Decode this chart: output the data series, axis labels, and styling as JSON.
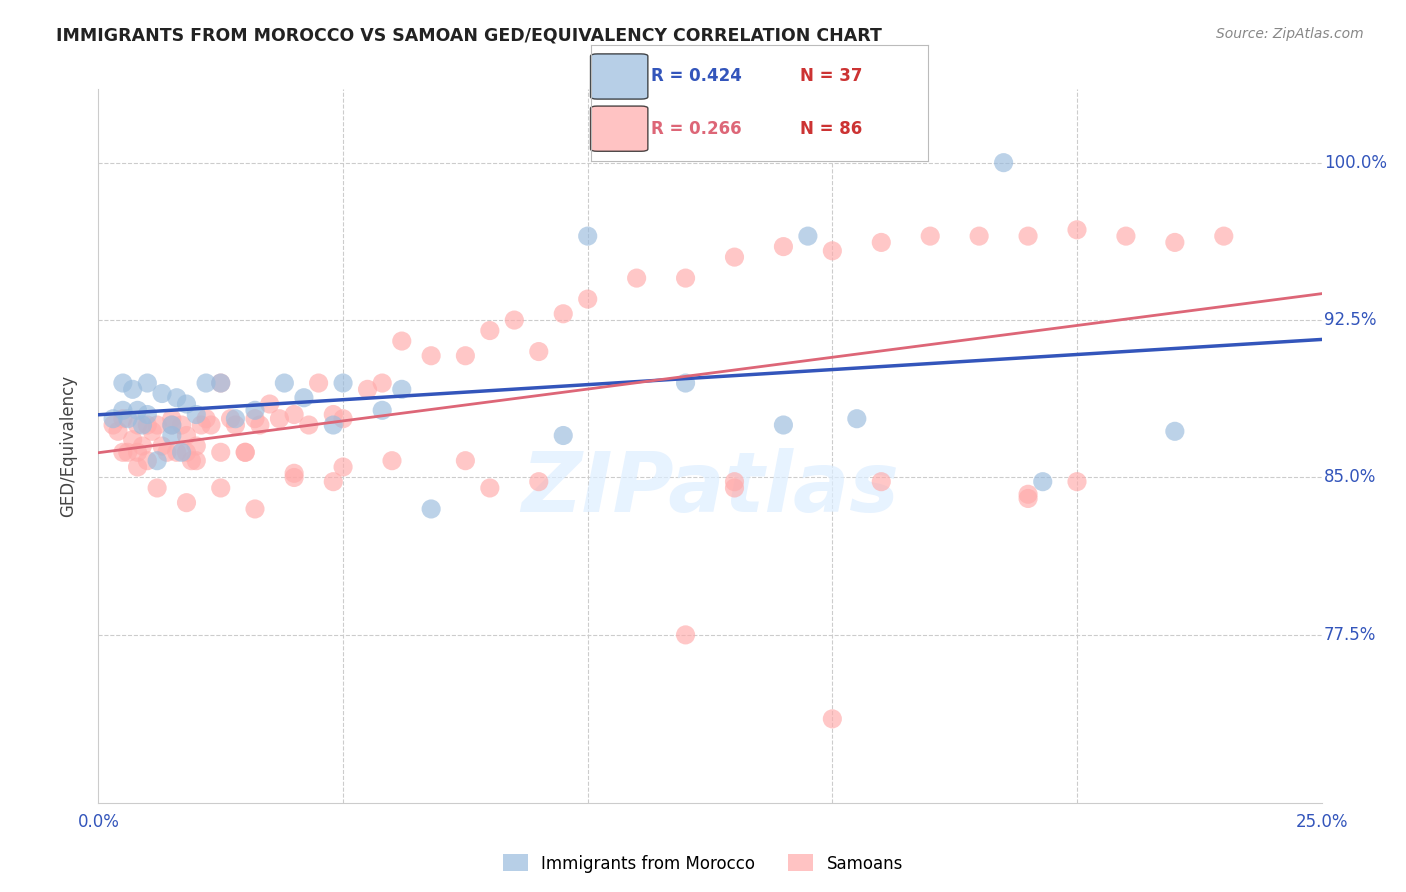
{
  "title": "IMMIGRANTS FROM MOROCCO VS SAMOAN GED/EQUIVALENCY CORRELATION CHART",
  "source": "Source: ZipAtlas.com",
  "ylabel": "GED/Equivalency",
  "ytick_labels": [
    "100.0%",
    "92.5%",
    "85.0%",
    "77.5%"
  ],
  "ytick_values": [
    1.0,
    0.925,
    0.85,
    0.775
  ],
  "xlim": [
    0.0,
    0.25
  ],
  "ylim": [
    0.695,
    1.035
  ],
  "r_blue": "0.424",
  "n_blue": "37",
  "r_pink": "0.266",
  "n_pink": "86",
  "blue_fill": "#99BBDD",
  "pink_fill": "#FFAAAA",
  "line_blue": "#3355BB",
  "line_pink": "#DD6677",
  "legend_label_blue": "Immigrants from Morocco",
  "legend_label_pink": "Samoans",
  "blue_x": [
    0.003,
    0.005,
    0.005,
    0.006,
    0.007,
    0.008,
    0.009,
    0.01,
    0.01,
    0.012,
    0.013,
    0.015,
    0.015,
    0.016,
    0.017,
    0.018,
    0.02,
    0.022,
    0.025,
    0.028,
    0.032,
    0.038,
    0.042,
    0.048,
    0.05,
    0.058,
    0.062,
    0.068,
    0.095,
    0.1,
    0.12,
    0.14,
    0.155,
    0.185,
    0.145,
    0.193,
    0.22
  ],
  "blue_y": [
    0.878,
    0.882,
    0.895,
    0.878,
    0.892,
    0.882,
    0.875,
    0.88,
    0.895,
    0.858,
    0.89,
    0.875,
    0.87,
    0.888,
    0.862,
    0.885,
    0.88,
    0.895,
    0.895,
    0.878,
    0.882,
    0.895,
    0.888,
    0.875,
    0.895,
    0.882,
    0.892,
    0.835,
    0.87,
    0.965,
    0.895,
    0.875,
    0.878,
    1.0,
    0.965,
    0.848,
    0.872
  ],
  "pink_x": [
    0.003,
    0.004,
    0.005,
    0.006,
    0.007,
    0.008,
    0.008,
    0.009,
    0.01,
    0.01,
    0.011,
    0.012,
    0.013,
    0.014,
    0.015,
    0.016,
    0.017,
    0.018,
    0.018,
    0.019,
    0.02,
    0.021,
    0.022,
    0.023,
    0.025,
    0.027,
    0.028,
    0.03,
    0.032,
    0.033,
    0.035,
    0.037,
    0.04,
    0.043,
    0.045,
    0.048,
    0.05,
    0.055,
    0.058,
    0.062,
    0.068,
    0.075,
    0.08,
    0.085,
    0.09,
    0.095,
    0.1,
    0.11,
    0.12,
    0.13,
    0.14,
    0.15,
    0.16,
    0.17,
    0.18,
    0.19,
    0.2,
    0.21,
    0.22,
    0.23,
    0.005,
    0.008,
    0.012,
    0.018,
    0.025,
    0.032,
    0.04,
    0.048,
    0.06,
    0.075,
    0.08,
    0.09,
    0.015,
    0.02,
    0.025,
    0.03,
    0.04,
    0.05,
    0.12,
    0.15,
    0.13,
    0.19,
    0.2,
    0.16,
    0.13,
    0.19
  ],
  "pink_y": [
    0.875,
    0.872,
    0.878,
    0.862,
    0.868,
    0.875,
    0.862,
    0.865,
    0.875,
    0.858,
    0.872,
    0.875,
    0.865,
    0.862,
    0.878,
    0.862,
    0.875,
    0.87,
    0.862,
    0.858,
    0.858,
    0.875,
    0.878,
    0.875,
    0.895,
    0.878,
    0.875,
    0.862,
    0.878,
    0.875,
    0.885,
    0.878,
    0.88,
    0.875,
    0.895,
    0.88,
    0.878,
    0.892,
    0.895,
    0.915,
    0.908,
    0.908,
    0.92,
    0.925,
    0.91,
    0.928,
    0.935,
    0.945,
    0.945,
    0.955,
    0.96,
    0.958,
    0.962,
    0.965,
    0.965,
    0.965,
    0.968,
    0.965,
    0.962,
    0.965,
    0.862,
    0.855,
    0.845,
    0.838,
    0.845,
    0.835,
    0.85,
    0.848,
    0.858,
    0.858,
    0.845,
    0.848,
    0.875,
    0.865,
    0.862,
    0.862,
    0.852,
    0.855,
    0.775,
    0.735,
    0.845,
    0.842,
    0.848,
    0.848,
    0.848,
    0.84
  ]
}
